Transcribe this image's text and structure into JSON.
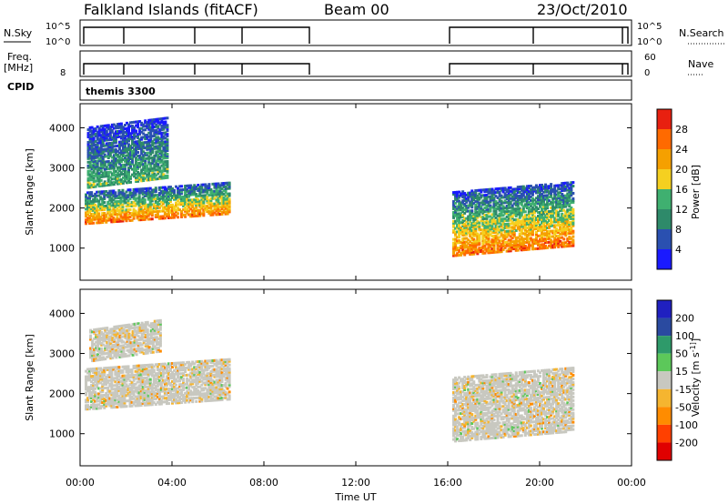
{
  "header": {
    "station": "Falkland Islands (fitACF)",
    "beam": "Beam 00",
    "date": "23/Oct/2010"
  },
  "sky_panel": {
    "label": "N.Sky",
    "tick_top": "10^5",
    "tick_bottom": "10^0",
    "right_top": "10^5",
    "right_bottom": "10^0",
    "right_label": "N.Search"
  },
  "freq_panel": {
    "label_top": "Freq.",
    "label_unit": "[MHz]",
    "tick_left_top": "",
    "tick_left_bottom": "8",
    "tick_right_top": "60",
    "tick_right_bottom": "0",
    "right_label": "Nave"
  },
  "cpid_panel": {
    "label": "CPID",
    "program": "themis 3300"
  },
  "colors": {
    "power": [
      "#1a1aff",
      "#2a50b0",
      "#2e8a6a",
      "#3fb070",
      "#f5d020",
      "#f5a000",
      "#ff6a00",
      "#e82010"
    ],
    "velocity": [
      "#e00000",
      "#ff4000",
      "#ff8c00",
      "#f5b530",
      "#c8c8c0",
      "#5cc85a",
      "#2e9a6a",
      "#2a4aa0",
      "#2020c0"
    ],
    "ground_scatter": "#c8c8c0"
  },
  "chart_data": [
    {
      "type": "heatmap",
      "panel": "power",
      "ylabel": "Slant Range [km]",
      "yticks": [
        1000,
        2000,
        3000,
        4000
      ],
      "ylim": [
        200,
        4600
      ],
      "xlim_hours": [
        0,
        24
      ],
      "colorbar_label": "Power [dB]",
      "colorbar_ticks": [
        "4",
        "8",
        "12",
        "16",
        "20",
        "24",
        "28"
      ],
      "colorbar_range": [
        0,
        32
      ],
      "scatter_regions": [
        {
          "t_start": 0.2,
          "t_end": 6.5,
          "r_low": 1600,
          "r_high": 2400,
          "peak_db": 28
        },
        {
          "t_start": 0.3,
          "t_end": 3.8,
          "r_low": 2500,
          "r_high": 4000,
          "peak_db": 12
        },
        {
          "t_start": 16.2,
          "t_end": 21.4,
          "r_low": 800,
          "r_high": 2400,
          "peak_db": 26
        }
      ]
    },
    {
      "type": "heatmap",
      "panel": "velocity",
      "ylabel": "Slant Range [km]",
      "yticks": [
        1000,
        2000,
        3000,
        4000
      ],
      "ylim": [
        200,
        4600
      ],
      "xlim_hours": [
        0,
        24
      ],
      "colorbar_label": "Velocity [m s^-1]",
      "colorbar_ticks": [
        "200",
        "100",
        "50",
        "15",
        "-15",
        "-50",
        "-100",
        "-200"
      ],
      "colorbar_range": [
        -250,
        250
      ],
      "xlabel": "Time UT",
      "xticks": [
        "00:00",
        "04:00",
        "08:00",
        "12:00",
        "16:00",
        "20:00",
        "00:00"
      ],
      "xtick_hours": [
        0,
        4,
        8,
        12,
        16,
        20,
        24
      ],
      "scatter_regions": [
        {
          "t_start": 0.2,
          "t_end": 6.5,
          "r_low": 1600,
          "r_high": 2600,
          "velocity": 0
        },
        {
          "t_start": 0.4,
          "t_end": 3.5,
          "r_low": 2800,
          "r_high": 3600,
          "velocity": 0
        },
        {
          "t_start": 16.2,
          "t_end": 21.4,
          "r_low": 800,
          "r_high": 2400,
          "velocity": 0
        }
      ]
    }
  ]
}
